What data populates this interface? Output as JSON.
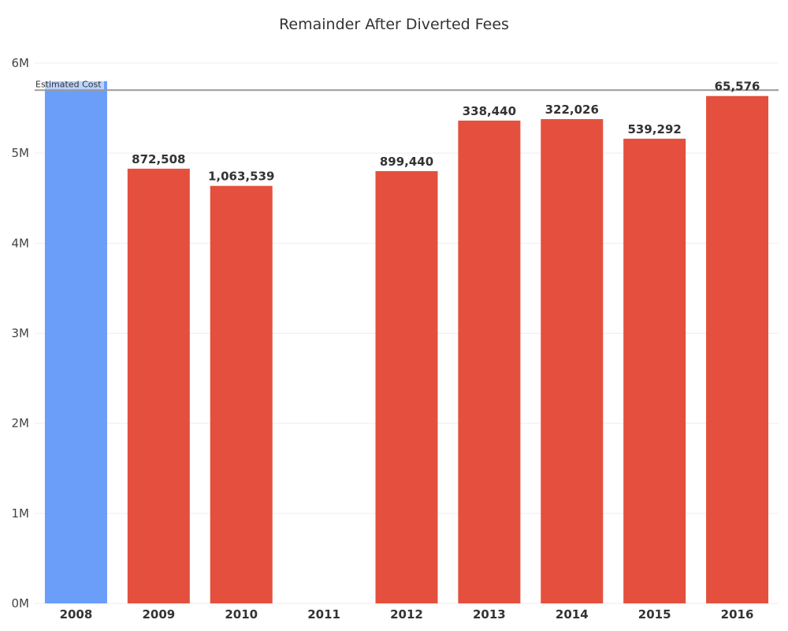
{
  "chart_data": {
    "type": "bar",
    "title": "Remainder After Diverted Fees",
    "xlabel": "",
    "ylabel": "",
    "ylim": [
      0,
      6200000
    ],
    "grid": true,
    "legend": "none",
    "categories": [
      "2008",
      "2009",
      "2010",
      "2011",
      "2012",
      "2013",
      "2014",
      "2015",
      "2016"
    ],
    "values": [
      5800000,
      4827492,
      4636461,
      0,
      4800560,
      5361560,
      5377974,
      5160708,
      5634424
    ],
    "bar_colors": [
      "#6a9ef8",
      "#e4503d",
      "#e4503d",
      "#e4503d",
      "#e4503d",
      "#e4503d",
      "#e4503d",
      "#e4503d",
      "#e4503d"
    ],
    "data_labels": [
      "",
      "872,508",
      "1,063,539",
      "",
      "899,440",
      "338,440",
      "322,026",
      "539,292",
      "65,576"
    ],
    "y_ticks": [
      {
        "value": 0,
        "label": "0M"
      },
      {
        "value": 1000000,
        "label": "1M"
      },
      {
        "value": 2000000,
        "label": "2M"
      },
      {
        "value": 3000000,
        "label": "3M"
      },
      {
        "value": 4000000,
        "label": "4M"
      },
      {
        "value": 5000000,
        "label": "5M"
      },
      {
        "value": 6000000,
        "label": "6M"
      }
    ],
    "reference_line": {
      "label": "Estimated Cost",
      "value": 5700000,
      "color": "#9a9a9a"
    }
  }
}
